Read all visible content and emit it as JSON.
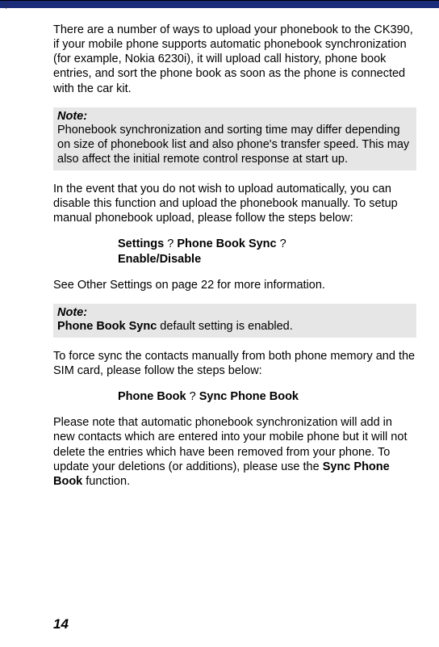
{
  "colors": {
    "top_bar": "#1a2b7a",
    "note_bg": "#e6e6e6",
    "text": "#000000",
    "background": "#ffffff"
  },
  "typography": {
    "body_fontsize": 14.5,
    "pagenum_fontsize": 17,
    "line_height": 1.25,
    "font_family": "Arial"
  },
  "para1": "There are a number of ways to upload your phonebook to the CK390, if your mobile phone supports automatic phonebook synchronization (for example, Nokia 6230i), it will upload call history, phone book entries, and sort the phone book as soon as the phone is connected with the car kit.",
  "note1": {
    "label": "Note:",
    "text": "Phonebook synchronization and sorting time may differ depending on size of phonebook list and also phone's transfer speed. This may also affect the initial remote control response at start up."
  },
  "para2": "In the event that you do not wish to upload automatically, you can disable this function and upload the phonebook manually. To setup manual phonebook upload, please follow the steps below:",
  "menu1": {
    "seg1": "Settings",
    "sep1": "? ",
    "seg2": "Phone Book Sync",
    "sep2": "?",
    "seg3": "Enable/Disable"
  },
  "para3_pre": "See Other Settings on page ",
  "para3_page": "22",
  "para3_post": " for more information.",
  "note2": {
    "label": "Note:",
    "bold": "Phone Book Sync",
    "rest": " default setting is enabled."
  },
  "para4": "To force sync the contacts manually from both phone memory and the SIM card, please follow the steps below:",
  "menu2": {
    "seg1": "Phone Book",
    "sep1": "? ",
    "seg2": "Sync Phone Book"
  },
  "para5_pre": "Please note that automatic phonebook synchronization will add in new contacts which are entered into your mobile phone but it will not delete the entries which have been removed from your phone. To update your deletions (or additions), please use the ",
  "para5_bold": "Sync Phone Book",
  "para5_post": " function.",
  "page_number": "14"
}
